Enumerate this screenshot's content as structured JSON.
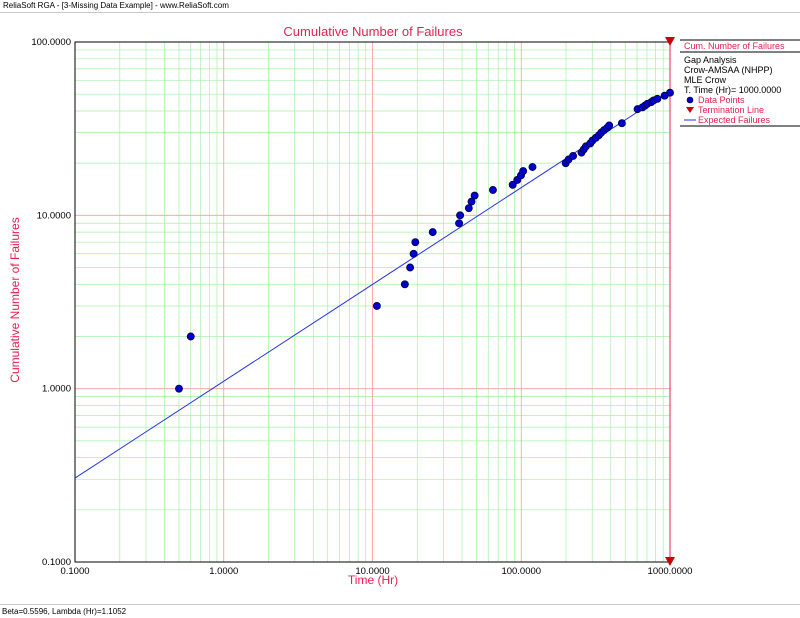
{
  "window": {
    "title": "ReliaSoft RGA - [3-Missing Data Example] - www.ReliaSoft.com"
  },
  "status_bar": {
    "text": "Beta=0.5596, Lambda (Hr)=1.1052"
  },
  "colors": {
    "accent": "#e8214f",
    "grid_major": "#ff9a9a",
    "grid_minor": "#a8f0a8",
    "series": "#0000cc",
    "line": "#2233ee",
    "termination": "#e8214f"
  },
  "chart_data": {
    "type": "scatter",
    "title": "Cumulative Number of Failures",
    "xlabel": "Time (Hr)",
    "ylabel": "Cumulative Number of Failures",
    "xscale": "log",
    "yscale": "log",
    "xlim": [
      0.1,
      1000
    ],
    "ylim": [
      0.1,
      100
    ],
    "grid": true,
    "xticks": [
      "0.1000",
      "1.0000",
      "10.0000",
      "100.0000",
      "1000.0000"
    ],
    "yticks": [
      "0.1000",
      "1.0000",
      "10.0000",
      "100.0000"
    ],
    "legend": {
      "position": "right",
      "header": "Cum. Number of Failures",
      "info": [
        "Gap Analysis",
        "Crow-AMSAA (NHPP)",
        "MLE Crow",
        "T. Time (Hr)= 1000.0000"
      ],
      "entries": [
        "Data Points",
        "Termination Line",
        "Expected Failures"
      ]
    },
    "series": [
      {
        "name": "Data Points",
        "x": [
          0.5,
          0.6,
          10.7,
          16.5,
          17.9,
          18.9,
          19.4,
          25.4,
          38.2,
          38.8,
          44.4,
          46.3,
          48.6,
          64.5,
          87.6,
          94,
          99.6,
          103,
          119,
          199,
          208,
          223,
          254,
          263,
          272,
          291,
          301,
          317,
          333,
          345,
          360,
          378,
          390,
          475,
          605,
          653,
          680,
          704,
          748,
          775,
          822,
          920,
          1000
        ],
        "y": [
          1,
          2,
          3,
          4,
          5,
          6,
          7,
          8,
          9,
          10,
          11,
          12,
          13,
          14,
          15,
          16,
          17,
          18,
          19,
          20,
          21,
          22,
          23,
          24,
          25,
          26,
          27,
          28,
          29,
          30,
          31,
          32,
          33,
          34,
          41,
          42,
          43,
          44,
          45,
          46,
          47,
          49,
          51
        ]
      },
      {
        "name": "Expected Failures",
        "x": [
          0.1,
          1000
        ],
        "y": [
          0.305,
          52.3
        ]
      },
      {
        "name": "Termination Line",
        "x": [
          1000,
          1000
        ],
        "y": [
          0.1,
          100
        ]
      }
    ]
  }
}
